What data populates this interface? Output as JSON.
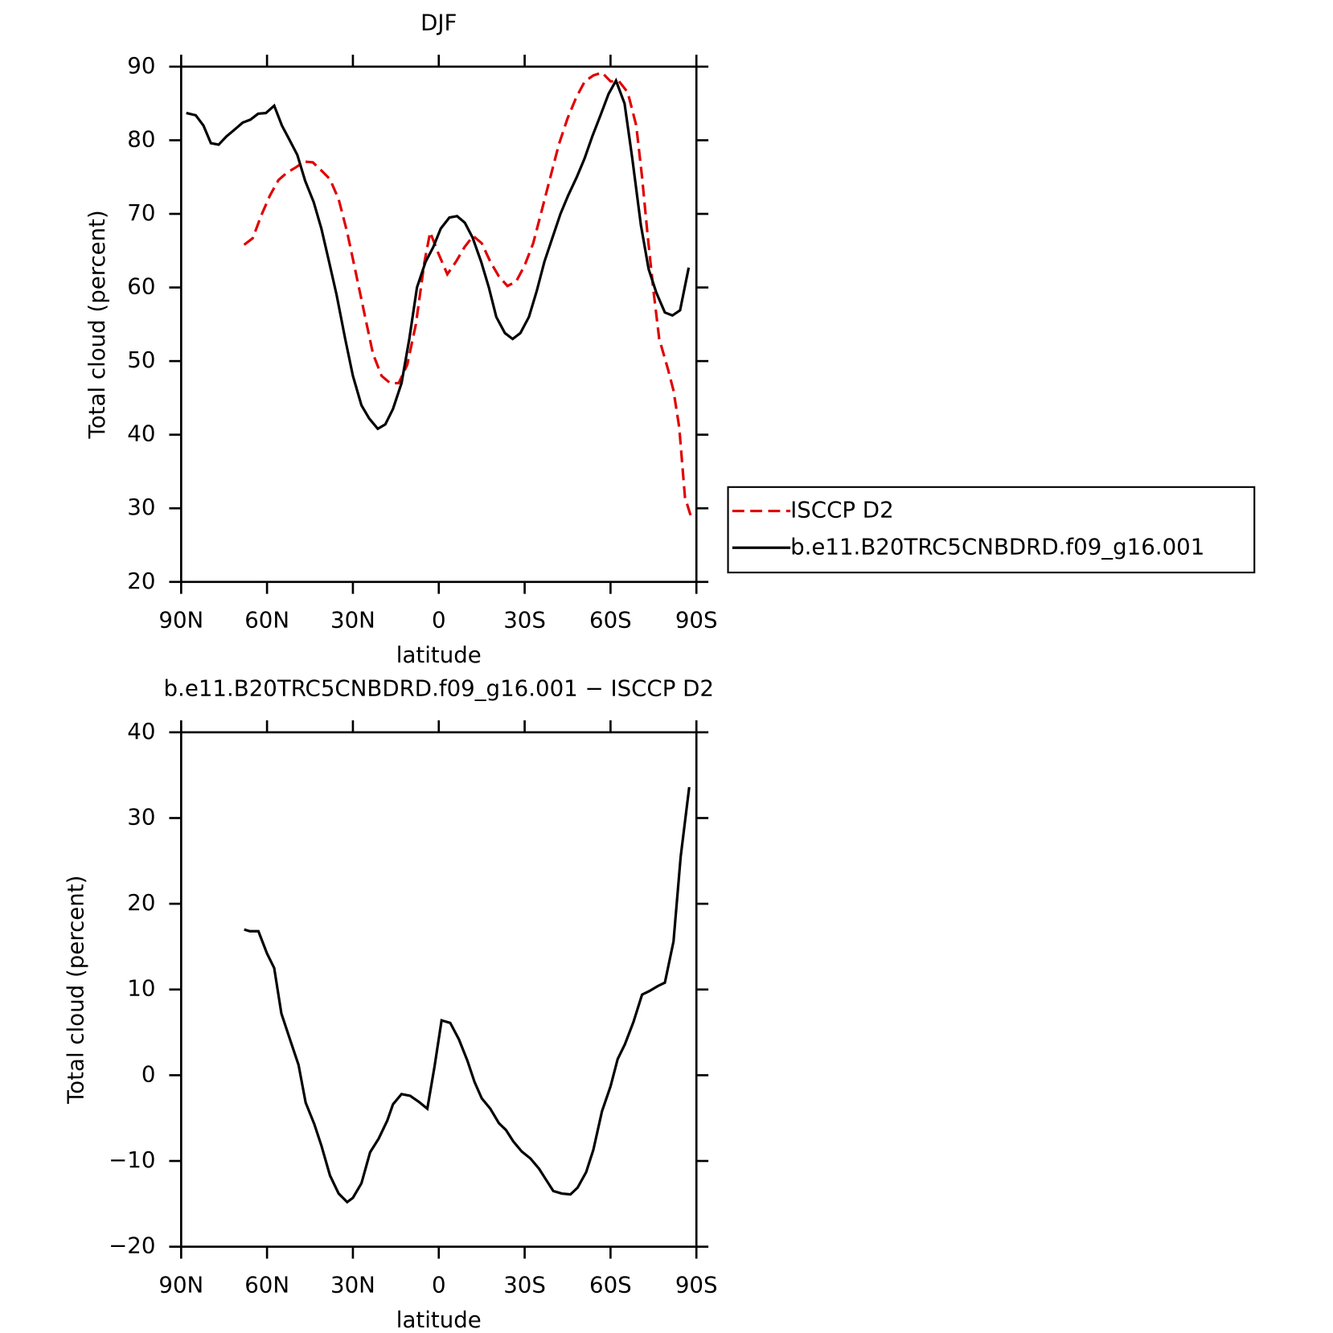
{
  "chart_data": [
    {
      "type": "line",
      "title": "DJF",
      "xlabel": "latitude",
      "ylabel": "Total cloud (percent)",
      "xlim": [
        90,
        -90
      ],
      "ylim": [
        20,
        90
      ],
      "xticks": [
        {
          "value": 90,
          "label": "90N"
        },
        {
          "value": 60,
          "label": "60N"
        },
        {
          "value": 30,
          "label": "30N"
        },
        0,
        {
          "value": -30,
          "label": "30S"
        },
        {
          "value": -60,
          "label": "60S"
        },
        {
          "value": -90,
          "label": "90S"
        }
      ],
      "yticks": [
        20,
        30,
        40,
        50,
        60,
        70,
        80,
        90
      ],
      "legend": "right",
      "series": [
        {
          "name": "ISCCP D2",
          "color": "#e00000",
          "dashed": true,
          "x": [
            68,
            65,
            62,
            59,
            56,
            53,
            50,
            47,
            44,
            41,
            38,
            35,
            32,
            29,
            26,
            23,
            20,
            17,
            14,
            11,
            8,
            5,
            3,
            0,
            -3,
            -6,
            -9,
            -12,
            -15,
            -18,
            -21,
            -24,
            -27,
            -30,
            -33,
            -36,
            -39,
            -42,
            -45,
            -48,
            -51,
            -54,
            -57,
            -60,
            -63,
            -66,
            -69,
            -71,
            -73,
            -75,
            -77,
            -80,
            -82,
            -84,
            -86,
            -88
          ],
          "values": [
            65.8,
            66.7,
            69.8,
            72.5,
            74.6,
            75.6,
            76.3,
            77.1,
            77,
            75.9,
            74.7,
            72,
            67.5,
            62,
            56.5,
            51,
            48,
            47,
            47,
            49.5,
            55,
            63.5,
            67.5,
            64.5,
            61.8,
            63.5,
            65.5,
            67,
            66,
            63.5,
            61.5,
            60.2,
            60.8,
            63,
            66,
            70.5,
            75,
            79.5,
            83,
            85.8,
            88,
            88.8,
            89.2,
            88,
            88,
            86.5,
            82,
            75,
            67,
            59.5,
            53,
            49,
            46,
            41,
            31.5,
            29
          ]
        },
        {
          "name": "b.e11.B20TRC5CNBDRD.f09_g16.001",
          "color": "#000000",
          "dashed": false,
          "x": [
            88.2,
            84.9,
            82.2,
            79.6,
            76.9,
            74.2,
            71.5,
            68.5,
            65.8,
            63.1,
            60.4,
            57.5,
            54.8,
            52.1,
            49.4,
            46.7,
            43.7,
            41,
            38.4,
            35.7,
            32.7,
            30,
            27,
            24.3,
            21.3,
            18.7,
            16,
            13,
            10.3,
            7.6,
            4.6,
            1.9,
            -0.7,
            -3.7,
            -6.4,
            -9.1,
            -11.8,
            -14.8,
            -17.5,
            -20.1,
            -23.1,
            -25.8,
            -28.5,
            -31.5,
            -34.2,
            -36.9,
            -39.9,
            -42.5,
            -45.2,
            -48.2,
            -50.9,
            -53.6,
            -56.6,
            -59.3,
            -61.9,
            -64.9,
            -67.6,
            -70.6,
            -73.3,
            -76,
            -79,
            -81.6,
            -84.3,
            -87.3
          ],
          "values": [
            83.7,
            83.4,
            82,
            79.6,
            79.4,
            80.5,
            81.4,
            82.4,
            82.8,
            83.6,
            83.7,
            84.7,
            82,
            80,
            78,
            74.5,
            71.6,
            68,
            63.6,
            59,
            53,
            48,
            44,
            42.2,
            40.8,
            41.4,
            43.5,
            47,
            53,
            60,
            63.5,
            65.5,
            68,
            69.5,
            69.7,
            68.8,
            66.8,
            63.5,
            60,
            56,
            53.8,
            53,
            53.8,
            56,
            59.5,
            63.5,
            67,
            70,
            72.5,
            75,
            77.5,
            80.5,
            83.5,
            86.3,
            88.1,
            85,
            77.5,
            68.5,
            62.5,
            59.3,
            56.6,
            56.2,
            56.9,
            62.7
          ]
        }
      ]
    },
    {
      "type": "line",
      "title": "b.e11.B20TRC5CNBDRD.f09_g16.001 − ISCCP D2",
      "xlabel": "latitude",
      "ylabel": "Total cloud (percent)",
      "xlim": [
        90,
        -90
      ],
      "ylim": [
        -20,
        40
      ],
      "xticks": [
        {
          "value": 90,
          "label": "90N"
        },
        {
          "value": 60,
          "label": "60N"
        },
        {
          "value": 30,
          "label": "30N"
        },
        0,
        {
          "value": -30,
          "label": "30S"
        },
        {
          "value": -60,
          "label": "60S"
        },
        {
          "value": -90,
          "label": "90S"
        }
      ],
      "yticks": [
        {
          "value": -20,
          "label": "−20"
        },
        {
          "value": -10,
          "label": "−10"
        },
        0,
        10,
        20,
        30,
        40
      ],
      "series": [
        {
          "color": "#000000",
          "dashed": false,
          "x": [
            68,
            66,
            63,
            60,
            57.5,
            55,
            52,
            49,
            46.5,
            43.5,
            41,
            38,
            35,
            32,
            30,
            27,
            24,
            21,
            18,
            16,
            13,
            10,
            7,
            4,
            1.5,
            -1,
            -4,
            -7,
            -10,
            -12.5,
            -15,
            -18,
            -21,
            -23.5,
            -26,
            -29,
            -32,
            -35,
            -37.5,
            -40,
            -43,
            -46,
            -48.5,
            -51.5,
            -54,
            -57,
            -60,
            -62.5,
            -65,
            -68,
            -71,
            -73.5,
            -76.5,
            -79,
            -82,
            -84.5,
            -87.5
          ],
          "values": [
            17,
            16.8,
            16.8,
            14.2,
            12.5,
            7.2,
            4.2,
            1.2,
            -3.2,
            -5.7,
            -8.2,
            -11.7,
            -13.8,
            -14.8,
            -14.3,
            -12.6,
            -9,
            -7.4,
            -5.3,
            -3.4,
            -2.2,
            -2.4,
            -3.1,
            -3.9,
            1,
            6.4,
            6.1,
            4.2,
            1.7,
            -0.8,
            -2.7,
            -3.9,
            -5.6,
            -6.4,
            -7.7,
            -8.9,
            -9.7,
            -10.9,
            -12.2,
            -13.5,
            -13.8,
            -13.9,
            -13.1,
            -11.3,
            -8.7,
            -4.2,
            -1.3,
            1.9,
            3.6,
            6.2,
            9.4,
            9.8,
            10.4,
            10.8,
            15.6,
            25.5,
            33.6
          ]
        }
      ]
    }
  ]
}
